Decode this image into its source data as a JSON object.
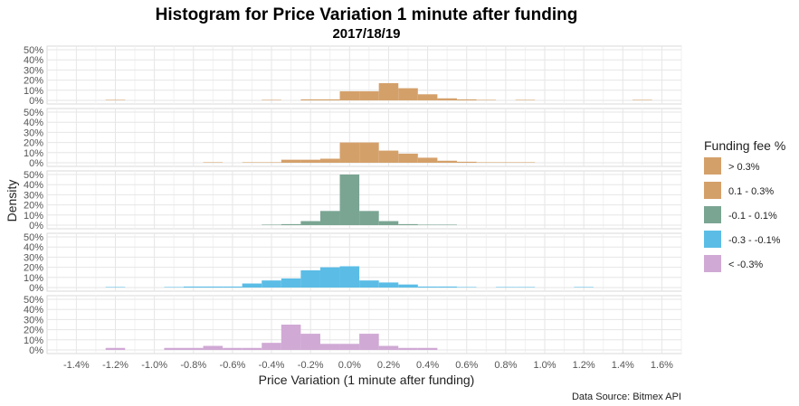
{
  "chart_data": {
    "type": "histogram",
    "title": "Histogram for Price Variation 1 minute after funding",
    "subtitle": "2017/18/19",
    "xlabel": "Price Variation (1 minute after funding)",
    "ylabel": "Density",
    "caption": "Data Source: Bitmex API",
    "xlim": [
      -1.55,
      1.7
    ],
    "ylim": [
      0,
      0.5
    ],
    "bin_width": 0.1,
    "x_ticks": [
      -1.4,
      -1.2,
      -1.0,
      -0.8,
      -0.6,
      -0.4,
      -0.2,
      0.0,
      0.2,
      0.4,
      0.6,
      0.8,
      1.0,
      1.2,
      1.4,
      1.6
    ],
    "x_tick_labels": [
      "-1.4%",
      "-1.2%",
      "-1.0%",
      "-0.8%",
      "-0.6%",
      "-0.4%",
      "-0.2%",
      "0.0%",
      "0.2%",
      "0.4%",
      "0.6%",
      "0.8%",
      "1.0%",
      "1.2%",
      "1.4%",
      "1.6%"
    ],
    "y_ticks": [
      0,
      0.1,
      0.2,
      0.3,
      0.4,
      0.5
    ],
    "y_tick_labels": [
      "0%",
      "10%",
      "20%",
      "30%",
      "40%",
      "50%"
    ],
    "grid": true,
    "legend": {
      "title": "Funding fee %",
      "position": "right",
      "entries": [
        {
          "label": "> 0.3%",
          "color": "#d4a06a"
        },
        {
          "label": "0.1 - 0.3%",
          "color": "#d4a06a"
        },
        {
          "label": "-0.1 - 0.1%",
          "color": "#7aa593"
        },
        {
          "label": "-0.3 - -0.1%",
          "color": "#5bbde6"
        },
        {
          "label": "< -0.3%",
          "color": "#d0a9d5"
        }
      ]
    },
    "series": [
      {
        "name": "> 0.3%",
        "color": "#d4a06a",
        "bins": [
          {
            "x": -1.2,
            "y": 0.005
          },
          {
            "x": -0.4,
            "y": 0.005
          },
          {
            "x": -0.2,
            "y": 0.01
          },
          {
            "x": -0.1,
            "y": 0.01
          },
          {
            "x": 0.0,
            "y": 0.09
          },
          {
            "x": 0.1,
            "y": 0.09
          },
          {
            "x": 0.2,
            "y": 0.17
          },
          {
            "x": 0.3,
            "y": 0.12
          },
          {
            "x": 0.4,
            "y": 0.06
          },
          {
            "x": 0.5,
            "y": 0.02
          },
          {
            "x": 0.6,
            "y": 0.01
          },
          {
            "x": 0.7,
            "y": 0.005
          },
          {
            "x": 0.9,
            "y": 0.005
          },
          {
            "x": 1.5,
            "y": 0.005
          }
        ]
      },
      {
        "name": "0.1 - 0.3%",
        "color": "#d4a06a",
        "bins": [
          {
            "x": -0.7,
            "y": 0.005
          },
          {
            "x": -0.5,
            "y": 0.005
          },
          {
            "x": -0.4,
            "y": 0.005
          },
          {
            "x": -0.3,
            "y": 0.03
          },
          {
            "x": -0.2,
            "y": 0.03
          },
          {
            "x": -0.1,
            "y": 0.04
          },
          {
            "x": 0.0,
            "y": 0.2
          },
          {
            "x": 0.1,
            "y": 0.2
          },
          {
            "x": 0.2,
            "y": 0.12
          },
          {
            "x": 0.3,
            "y": 0.09
          },
          {
            "x": 0.4,
            "y": 0.05
          },
          {
            "x": 0.5,
            "y": 0.02
          },
          {
            "x": 0.6,
            "y": 0.01
          },
          {
            "x": 0.7,
            "y": 0.005
          },
          {
            "x": 0.8,
            "y": 0.005
          },
          {
            "x": 0.9,
            "y": 0.005
          }
        ]
      },
      {
        "name": "-0.1 - 0.1%",
        "color": "#7aa593",
        "bins": [
          {
            "x": -0.4,
            "y": 0.005
          },
          {
            "x": -0.3,
            "y": 0.01
          },
          {
            "x": -0.2,
            "y": 0.04
          },
          {
            "x": -0.1,
            "y": 0.14
          },
          {
            "x": 0.0,
            "y": 0.5
          },
          {
            "x": 0.1,
            "y": 0.14
          },
          {
            "x": 0.2,
            "y": 0.04
          },
          {
            "x": 0.3,
            "y": 0.01
          },
          {
            "x": 0.4,
            "y": 0.005
          },
          {
            "x": 0.5,
            "y": 0.005
          }
        ]
      },
      {
        "name": "-0.3 - -0.1%",
        "color": "#5bbde6",
        "bins": [
          {
            "x": -1.2,
            "y": 0.005
          },
          {
            "x": -0.9,
            "y": 0.005
          },
          {
            "x": -0.8,
            "y": 0.01
          },
          {
            "x": -0.7,
            "y": 0.01
          },
          {
            "x": -0.6,
            "y": 0.01
          },
          {
            "x": -0.5,
            "y": 0.04
          },
          {
            "x": -0.4,
            "y": 0.07
          },
          {
            "x": -0.3,
            "y": 0.09
          },
          {
            "x": -0.2,
            "y": 0.17
          },
          {
            "x": -0.1,
            "y": 0.2
          },
          {
            "x": 0.0,
            "y": 0.21
          },
          {
            "x": 0.1,
            "y": 0.07
          },
          {
            "x": 0.2,
            "y": 0.05
          },
          {
            "x": 0.3,
            "y": 0.03
          },
          {
            "x": 0.4,
            "y": 0.01
          },
          {
            "x": 0.5,
            "y": 0.01
          },
          {
            "x": 0.6,
            "y": 0.005
          },
          {
            "x": 0.8,
            "y": 0.005
          },
          {
            "x": 0.9,
            "y": 0.005
          },
          {
            "x": 1.2,
            "y": 0.005
          }
        ]
      },
      {
        "name": "< -0.3%",
        "color": "#d0a9d5",
        "bins": [
          {
            "x": -1.2,
            "y": 0.02
          },
          {
            "x": -0.9,
            "y": 0.02
          },
          {
            "x": -0.8,
            "y": 0.02
          },
          {
            "x": -0.7,
            "y": 0.04
          },
          {
            "x": -0.6,
            "y": 0.02
          },
          {
            "x": -0.5,
            "y": 0.02
          },
          {
            "x": -0.4,
            "y": 0.07
          },
          {
            "x": -0.3,
            "y": 0.25
          },
          {
            "x": -0.2,
            "y": 0.16
          },
          {
            "x": -0.1,
            "y": 0.06
          },
          {
            "x": 0.0,
            "y": 0.06
          },
          {
            "x": 0.1,
            "y": 0.16
          },
          {
            "x": 0.2,
            "y": 0.04
          },
          {
            "x": 0.3,
            "y": 0.02
          },
          {
            "x": 0.4,
            "y": 0.02
          }
        ]
      }
    ]
  }
}
